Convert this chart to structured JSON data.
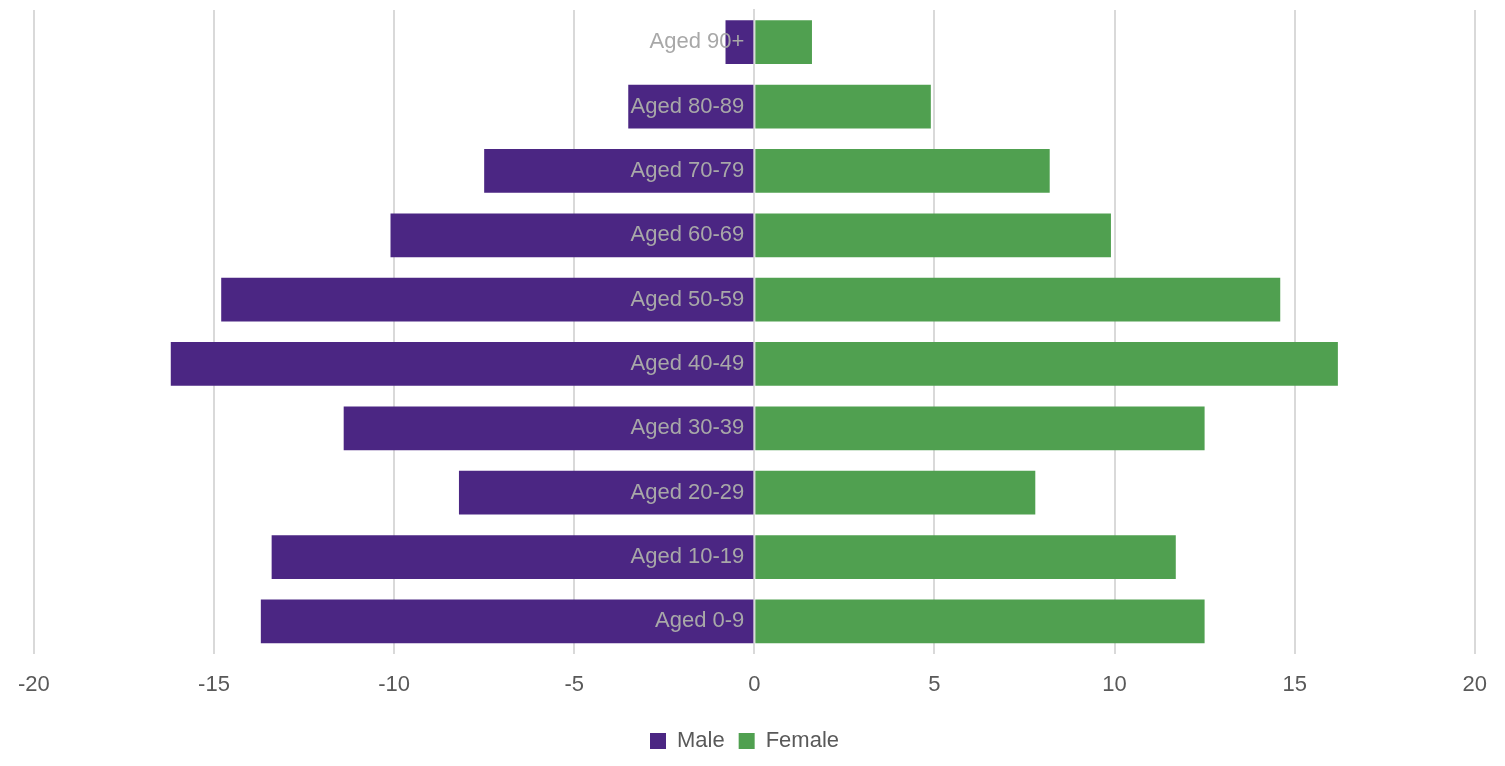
{
  "chart_data": {
    "type": "bar",
    "orientation": "horizontal",
    "stacked": true,
    "categories": [
      "Aged 90+",
      "Aged 80-89",
      "Aged 70-79",
      "Aged 60-69",
      "Aged 50-59",
      "Aged 40-49",
      "Aged 30-39",
      "Aged 20-29",
      "Aged 10-19",
      "Aged 0-9"
    ],
    "series": [
      {
        "name": "Male",
        "color": "#4b2683",
        "values": [
          -0.8,
          -3.5,
          -7.5,
          -10.1,
          -14.8,
          -16.2,
          -11.4,
          -8.2,
          -13.4,
          -13.7
        ]
      },
      {
        "name": "Female",
        "color": "#50a050",
        "values": [
          1.6,
          4.9,
          8.2,
          9.9,
          14.6,
          16.2,
          12.5,
          7.8,
          11.7,
          12.5
        ]
      }
    ],
    "xlim": [
      -20,
      20
    ],
    "xticks": [
      -20,
      -15,
      -10,
      -5,
      0,
      5,
      10,
      15,
      20
    ],
    "grid": "x",
    "legend": "bottom"
  }
}
